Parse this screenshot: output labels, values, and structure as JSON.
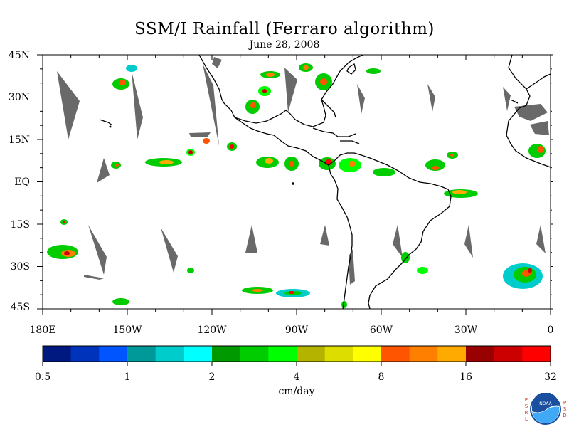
{
  "title": "SSM/I Rainfall (Ferraro algorithm)",
  "subtitle": "June 28, 2008",
  "map": {
    "lat_labels": [
      "45N",
      "30N",
      "15N",
      "EQ",
      "15S",
      "30S",
      "45S"
    ],
    "lat_values": [
      45,
      30,
      15,
      0,
      -15,
      -30,
      -45
    ],
    "lon_labels": [
      "180E",
      "150W",
      "120W",
      "90W",
      "60W",
      "30W",
      "0"
    ],
    "lon_values": [
      -180,
      -150,
      -120,
      -90,
      -60,
      -30,
      0
    ],
    "extent": {
      "lon_min": -180,
      "lon_max": 0,
      "lat_min": -45,
      "lat_max": 45
    },
    "land_outline_color": "#000000",
    "no_data_color": "#696969"
  },
  "colorbar": {
    "tick_labels": [
      "0.5",
      "1",
      "2",
      "4",
      "8",
      "16",
      "32"
    ],
    "colors": [
      "#001980",
      "#0033bb",
      "#0055ff",
      "#00999a",
      "#00cccc",
      "#00ffff",
      "#009900",
      "#00cc00",
      "#00ff00",
      "#b3b300",
      "#dddd00",
      "#ffff00",
      "#ff5500",
      "#ff7f00",
      "#ffaa00",
      "#990000",
      "#cc0000",
      "#ff0000"
    ]
  },
  "units": "cm/day",
  "logo": {
    "left_text": [
      "E",
      "S",
      "R",
      "L"
    ],
    "right_text": [
      "P",
      "S",
      "D"
    ],
    "badge_text": "NOAA",
    "colors": {
      "ring": "#1a4fa0",
      "wave": "#3fa9f5",
      "letters": "#c0392b"
    }
  }
}
